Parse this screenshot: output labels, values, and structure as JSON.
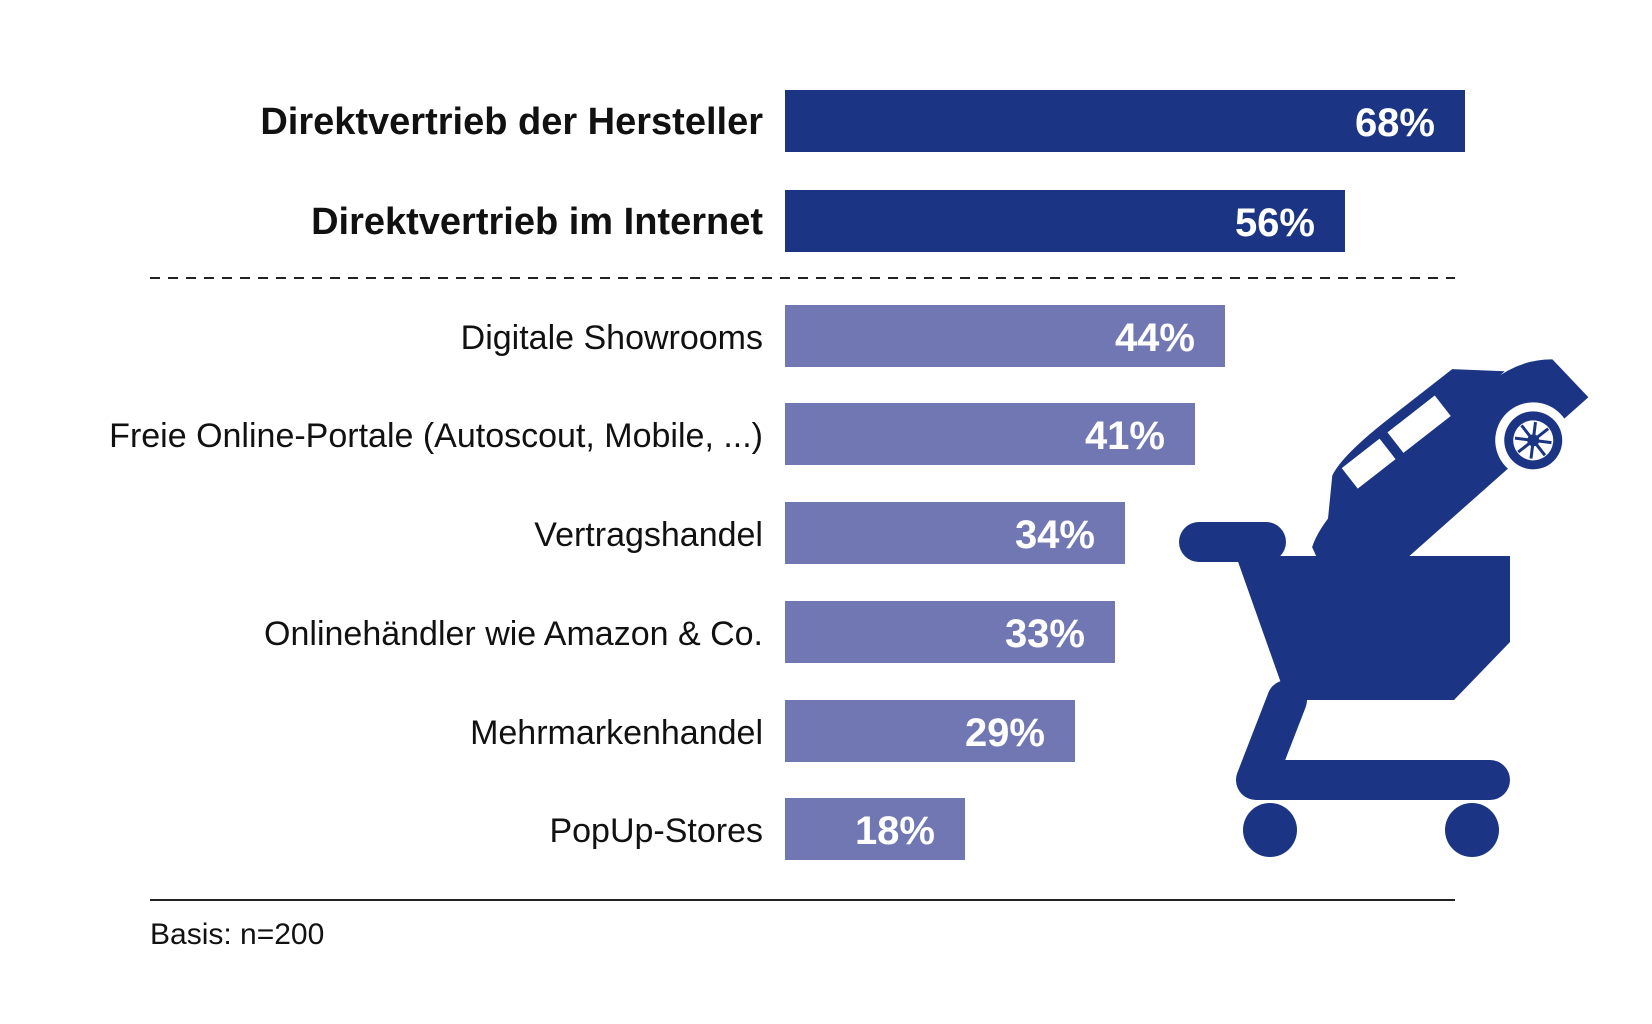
{
  "chart_data": {
    "type": "bar",
    "orientation": "horizontal",
    "categories": [
      "Direktvertrieb der Hersteller",
      "Direktvertrieb im Internet",
      "Digitale Showrooms",
      "Freie Online-Portale (Autoscout, Mobile, ...)",
      "Vertragshandel",
      "Onlinehändler wie Amazon & Co.",
      "Mehrmarkenhandel",
      "PopUp-Stores"
    ],
    "values": [
      68,
      56,
      44,
      41,
      34,
      33,
      29,
      18
    ],
    "value_labels": [
      "68%",
      "56%",
      "44%",
      "41%",
      "34%",
      "33%",
      "29%",
      "18%"
    ],
    "highlighted": [
      true,
      true,
      false,
      false,
      false,
      false,
      false,
      false
    ],
    "xlim": [
      0,
      100
    ],
    "unit": "%",
    "grid": false,
    "separator_after_index": 1
  },
  "footnote": "Basis: n=200",
  "colors": {
    "highlight_bar": "#1B3483",
    "regular_bar": "#7177B3",
    "icon": "#1B3483",
    "text": "#111111"
  },
  "icon": "shopping-cart-with-car-icon"
}
